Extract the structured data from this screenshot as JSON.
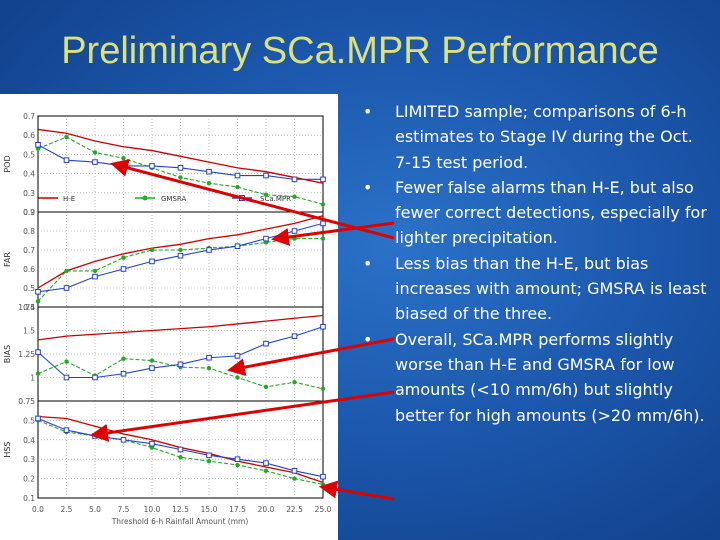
{
  "slide": {
    "title": "Preliminary SCa.MPR Performance",
    "bullet_glyph": "•",
    "bullets": [
      "LIMITED sample; comparisons of 6-h estimates to Stage IV during the Oct. 7-15 test period.",
      "Fewer false alarms than H-E, but also fewer correct detections, especially for lighter precipitation.",
      "Less bias than the H-E, but bias increases with amount; GMSRA is least biased of the three.",
      "Overall, SCa.MPR performs slightly worse than H-E and GMSRA for low amounts (<10 mm/6h) but slightly better for high amounts (>20 mm/6h)."
    ],
    "colors": {
      "title": "#dce27a",
      "background": "#1c58ad",
      "he": "#cc0000",
      "gmsra": "#22aa22",
      "scampr": "#2244cc",
      "arrow": "#dd0000"
    }
  },
  "chart_data": {
    "type": "line",
    "legend": [
      "H-E",
      "GMSRA",
      "SCa.MPR"
    ],
    "legend_placement": "top",
    "x": [
      0.0,
      2.5,
      5.0,
      7.5,
      10.0,
      12.5,
      15.0,
      17.5,
      20.0,
      22.5,
      25.0
    ],
    "x_tick_labels": [
      "0.0",
      "2.5",
      "5.0",
      "7.5",
      "10.0",
      "12.5",
      "15.0",
      "17.5",
      "20.0",
      "22.5",
      "25.0"
    ],
    "xlabel": "Threshold 6-h Rainfall Amount (mm)",
    "grid": true,
    "panels": [
      {
        "ylabel": "POD",
        "ylim": [
          0.2,
          0.7
        ],
        "yticks": [
          "0.2",
          "0.3",
          "0.4",
          "0.5",
          "0.6",
          "0.7"
        ],
        "series": [
          {
            "name": "H-E",
            "values": [
              0.63,
              0.61,
              0.57,
              0.54,
              0.52,
              0.49,
              0.46,
              0.43,
              0.41,
              0.38,
              0.35
            ]
          },
          {
            "name": "GMSRA",
            "values": [
              0.53,
              0.59,
              0.51,
              0.48,
              0.43,
              0.38,
              0.35,
              0.33,
              0.29,
              0.28,
              0.24
            ]
          },
          {
            "name": "SCa.MPR",
            "values": [
              0.55,
              0.47,
              0.46,
              0.44,
              0.44,
              0.43,
              0.41,
              0.39,
              0.39,
              0.37,
              0.37
            ]
          }
        ]
      },
      {
        "ylabel": "FAR",
        "ylim": [
          0.4,
          0.9
        ],
        "yticks": [
          "0.4",
          "0.5",
          "0.6",
          "0.7",
          "0.8",
          "0.9"
        ],
        "series": [
          {
            "name": "H-E",
            "values": [
              0.5,
              0.59,
              0.64,
              0.68,
              0.71,
              0.73,
              0.76,
              0.78,
              0.81,
              0.84,
              0.88
            ]
          },
          {
            "name": "GMSRA",
            "values": [
              0.43,
              0.59,
              0.59,
              0.66,
              0.7,
              0.7,
              0.71,
              0.72,
              0.74,
              0.76,
              0.76
            ]
          },
          {
            "name": "SCa.MPR",
            "values": [
              0.48,
              0.5,
              0.56,
              0.6,
              0.64,
              0.67,
              0.7,
              0.72,
              0.76,
              0.8,
              0.84
            ]
          }
        ]
      },
      {
        "ylabel": "BIAS",
        "ylim": [
          0.75,
          1.75
        ],
        "yticks": [
          "0.75",
          "1",
          "1.25",
          "1.5",
          "1.75"
        ],
        "series": [
          {
            "name": "H-E",
            "values": [
              1.4,
              1.44,
              1.46,
              1.48,
              1.5,
              1.52,
              1.54,
              1.57,
              1.6,
              1.63,
              1.66
            ]
          },
          {
            "name": "GMSRA",
            "values": [
              1.04,
              1.17,
              1.02,
              1.2,
              1.18,
              1.11,
              1.1,
              1.0,
              0.9,
              0.95,
              0.88
            ]
          },
          {
            "name": "SCa.MPR",
            "values": [
              1.27,
              1.0,
              1.0,
              1.04,
              1.1,
              1.14,
              1.21,
              1.23,
              1.36,
              1.44,
              1.54
            ]
          }
        ]
      },
      {
        "ylabel": "HSS",
        "ylim": [
          0.1,
          0.6
        ],
        "yticks": [
          "0.1",
          "0.2",
          "0.3",
          "0.4",
          "0.5"
        ],
        "series": [
          {
            "name": "H-E",
            "values": [
              0.52,
              0.51,
              0.47,
              0.43,
              0.4,
              0.36,
              0.33,
              0.29,
              0.26,
              0.23,
              0.18
            ]
          },
          {
            "name": "GMSRA",
            "values": [
              0.5,
              0.44,
              0.42,
              0.4,
              0.36,
              0.31,
              0.29,
              0.27,
              0.24,
              0.2,
              0.17
            ]
          },
          {
            "name": "SCa.MPR",
            "values": [
              0.51,
              0.45,
              0.42,
              0.4,
              0.38,
              0.35,
              0.32,
              0.3,
              0.28,
              0.24,
              0.21
            ]
          }
        ]
      }
    ]
  }
}
